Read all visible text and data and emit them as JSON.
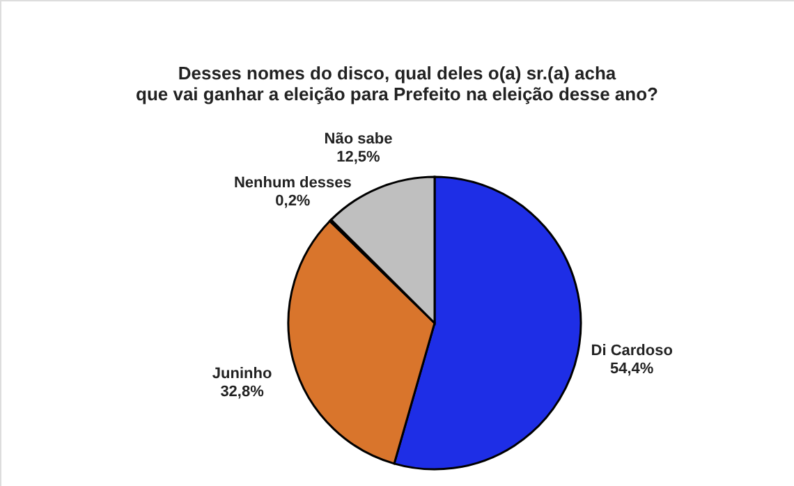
{
  "chart_data": {
    "type": "pie",
    "title": [
      "Desses nomes do disco, qual deles o(a) sr.(a) acha",
      "que vai ganhar a eleição para Prefeito na eleição desse ano?"
    ],
    "categories": [
      "Di Cardoso",
      "Juninho",
      "Nenhum desses",
      "Não sabe"
    ],
    "values": [
      54.4,
      32.8,
      0.2,
      12.5
    ],
    "colors": [
      "#1e2ee6",
      "#d9752c",
      "#1a1a1a",
      "#bfbfbf"
    ],
    "value_labels": [
      "54,4%",
      "32,8%",
      "0,2%",
      "12,5%"
    ],
    "legend": false
  }
}
